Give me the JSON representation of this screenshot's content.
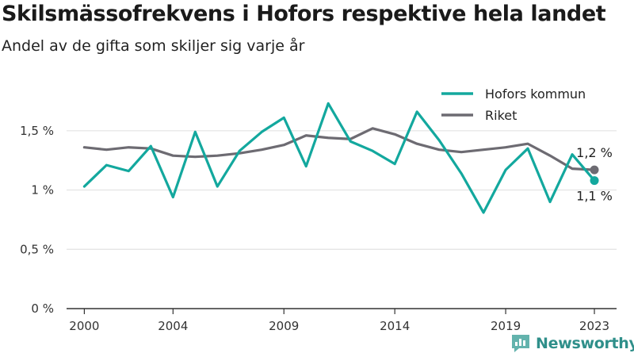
{
  "title": "Skilsmässofrekvens i Hofors respektive hela landet",
  "subtitle": "Andel av de gifta som skiljer sig varje år",
  "brand": {
    "name": "Newsworthy",
    "icon": "newsworthy-logo-icon"
  },
  "colors": {
    "hofors": "#13a89e",
    "riket": "#6d6b72",
    "grid": "#e3e3e3",
    "axis": "#333333"
  },
  "chart_data": {
    "type": "line",
    "title": "Skilsmässofrekvens i Hofors respektive hela landet",
    "subtitle": "Andel av de gifta som skiljer sig varje år",
    "xlabel": "",
    "ylabel": "",
    "x": [
      2000,
      2001,
      2002,
      2003,
      2004,
      2005,
      2006,
      2007,
      2008,
      2009,
      2010,
      2011,
      2012,
      2013,
      2014,
      2015,
      2016,
      2017,
      2018,
      2019,
      2020,
      2021,
      2022,
      2023
    ],
    "xlim": [
      1999.2,
      2024
    ],
    "x_ticks": [
      2000,
      2004,
      2009,
      2014,
      2019,
      2023
    ],
    "x_tick_labels": [
      "2000",
      "2004",
      "2009",
      "2014",
      "2019",
      "2023"
    ],
    "ylim": [
      0,
      1.9
    ],
    "y_ticks": [
      0,
      0.5,
      1,
      1.5
    ],
    "y_tick_labels": [
      "0 %",
      "0,5 %",
      "1 %",
      "1,5 %"
    ],
    "grid": true,
    "legend": "top-right",
    "series": [
      {
        "name": "Hofors kommun",
        "color": "#13a89e",
        "values": [
          1.03,
          1.21,
          1.16,
          1.37,
          0.94,
          1.49,
          1.03,
          1.33,
          1.49,
          1.61,
          1.2,
          1.73,
          1.41,
          1.33,
          1.22,
          1.66,
          1.42,
          1.14,
          0.81,
          1.17,
          1.35,
          0.9,
          1.3,
          1.08
        ],
        "end_label": "1,1 %"
      },
      {
        "name": "Riket",
        "color": "#6d6b72",
        "values": [
          1.36,
          1.34,
          1.36,
          1.35,
          1.29,
          1.28,
          1.29,
          1.31,
          1.34,
          1.38,
          1.46,
          1.44,
          1.43,
          1.52,
          1.47,
          1.39,
          1.34,
          1.32,
          1.34,
          1.36,
          1.39,
          1.29,
          1.18,
          1.17
        ],
        "end_label": "1,2 %"
      }
    ]
  }
}
